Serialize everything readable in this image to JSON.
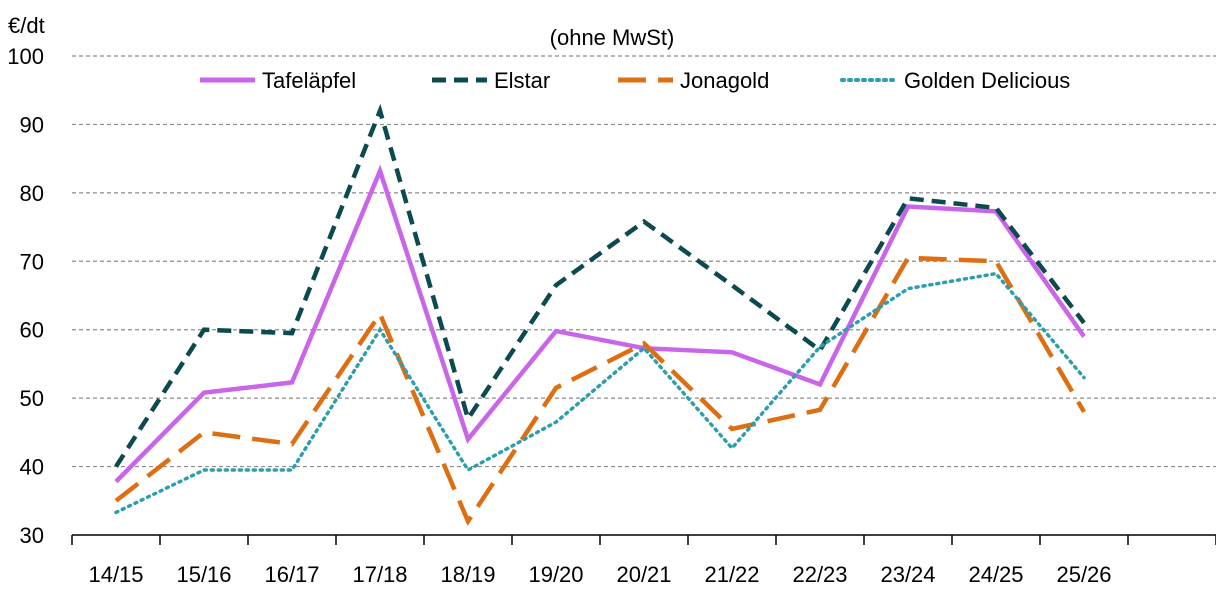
{
  "chart_data": {
    "type": "line",
    "title": "",
    "subtitle": "(ohne MwSt)",
    "ylabel": "€/dt",
    "xlabel": "",
    "ylim": [
      30,
      100
    ],
    "yticks": [
      30,
      40,
      50,
      60,
      70,
      80,
      90,
      100
    ],
    "grid": true,
    "legend_position": "top",
    "categories": [
      "14/15",
      "15/16",
      "16/17",
      "17/18",
      "18/19",
      "19/20",
      "20/21",
      "21/22",
      "22/23",
      "23/24",
      "24/25",
      "25/26"
    ],
    "series": [
      {
        "name": "Tafeläpfel",
        "color": "#c965e8",
        "dash": "solid",
        "values": [
          37.8,
          50.8,
          52.3,
          83.2,
          44.0,
          59.8,
          57.3,
          56.7,
          52.0,
          78.0,
          77.3,
          59.0
        ]
      },
      {
        "name": "Elstar",
        "color": "#0c4a4f",
        "dash": "dash",
        "values": [
          40.0,
          60.0,
          59.5,
          92.0,
          47.0,
          66.5,
          75.8,
          66.5,
          57.0,
          79.2,
          77.8,
          61.0
        ]
      },
      {
        "name": "Jonagold",
        "color": "#de6e12",
        "dash": "longdash",
        "values": [
          35.0,
          45.0,
          43.3,
          62.3,
          32.0,
          51.5,
          58.0,
          45.5,
          48.3,
          70.5,
          70.0,
          48.0
        ]
      },
      {
        "name": "Golden Delicious",
        "color": "#2e9eac",
        "dash": "dot",
        "values": [
          33.3,
          39.5,
          39.5,
          60.0,
          39.5,
          46.5,
          57.3,
          42.7,
          57.5,
          66.0,
          68.2,
          53.0
        ]
      }
    ]
  }
}
